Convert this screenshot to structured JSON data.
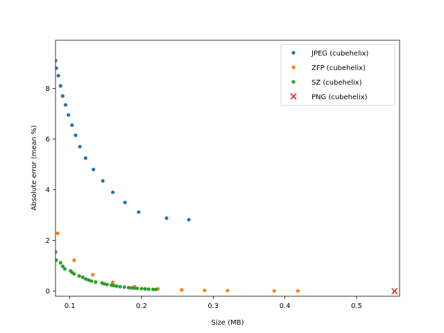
{
  "chart_data": {
    "type": "scatter",
    "title": "",
    "xlabel": "Size (MB)",
    "ylabel": "Absolute error (mean %)",
    "xlim": [
      0.08,
      0.56
    ],
    "ylim": [
      -0.2,
      9.9
    ],
    "xticks": [
      0.1,
      0.2,
      0.3,
      0.4,
      0.5
    ],
    "xtick_labels": [
      "0.1",
      "0.2",
      "0.3",
      "0.4",
      "0.5"
    ],
    "yticks": [
      0,
      2,
      4,
      6,
      8
    ],
    "ytick_labels": [
      "0",
      "2",
      "4",
      "6",
      "8"
    ],
    "grid": false,
    "legend_position": "top-right",
    "series": [
      {
        "name": "JPEG (cubehelix)",
        "color": "#1f77b4",
        "marker": "dot",
        "x": [
          0.08,
          0.081,
          0.084,
          0.087,
          0.09,
          0.094,
          0.098,
          0.103,
          0.108,
          0.114,
          0.122,
          0.133,
          0.146,
          0.16,
          0.177,
          0.196,
          0.235,
          0.266
        ],
        "y": [
          9.1,
          8.8,
          8.5,
          8.1,
          7.7,
          7.35,
          6.95,
          6.55,
          6.15,
          5.7,
          5.25,
          4.8,
          4.35,
          3.9,
          3.5,
          3.12,
          2.88,
          2.82
        ]
      },
      {
        "name": "ZFP (cubehelix)",
        "color": "#ff7f0e",
        "marker": "dot",
        "x": [
          0.083,
          0.106,
          0.132,
          0.16,
          0.19,
          0.223,
          0.256,
          0.288,
          0.32,
          0.385,
          0.418
        ],
        "y": [
          2.28,
          1.22,
          0.65,
          0.35,
          0.18,
          0.09,
          0.05,
          0.03,
          0.02,
          0.01,
          0.01
        ]
      },
      {
        "name": "SZ (cubehelix)",
        "color": "#2ca02c",
        "marker": "dot",
        "x": [
          0.08,
          0.081,
          0.087,
          0.09,
          0.093,
          0.101,
          0.103,
          0.106,
          0.113,
          0.118,
          0.122,
          0.126,
          0.13,
          0.136,
          0.145,
          0.148,
          0.152,
          0.158,
          0.161,
          0.165,
          0.17,
          0.176,
          0.182,
          0.186,
          0.19,
          0.194,
          0.2,
          0.205,
          0.21,
          0.216,
          0.22
        ],
        "y": [
          1.55,
          1.22,
          1.12,
          0.98,
          0.88,
          0.8,
          0.74,
          0.68,
          0.6,
          0.55,
          0.48,
          0.44,
          0.4,
          0.36,
          0.32,
          0.29,
          0.26,
          0.24,
          0.22,
          0.2,
          0.18,
          0.16,
          0.14,
          0.13,
          0.12,
          0.11,
          0.1,
          0.09,
          0.08,
          0.07,
          0.07
        ]
      },
      {
        "name": "PNG (cubehelix)",
        "color": "#d62728",
        "marker": "x",
        "x": [
          0.553
        ],
        "y": [
          0.0
        ]
      }
    ]
  }
}
